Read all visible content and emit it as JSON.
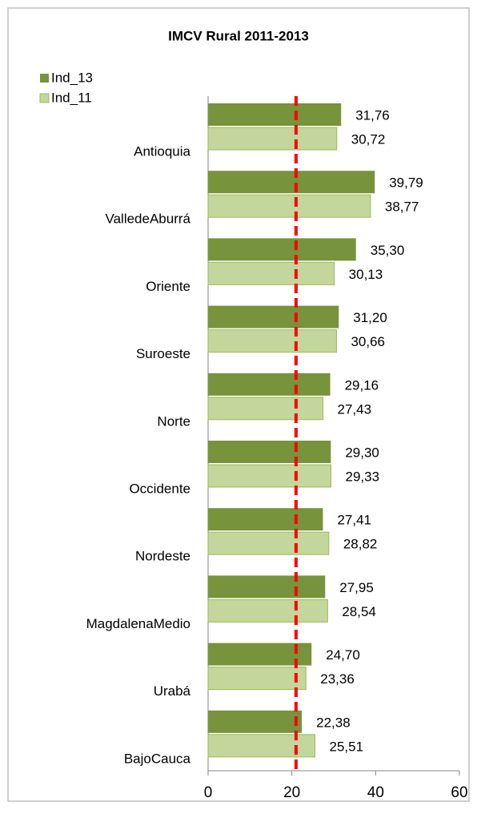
{
  "chart_data": {
    "type": "hbar",
    "title": "IMCV Rural 2011-2013",
    "categories": [
      "Antioquia",
      "ValledeAburrá",
      "Oriente",
      "Suroeste",
      "Norte",
      "Occidente",
      "Nordeste",
      "MagdalenaMedio",
      "Urabá",
      "BajoCauca"
    ],
    "series": [
      {
        "name": "Ind_13",
        "color": "#77933c",
        "values": [
          31.76,
          39.79,
          35.3,
          31.2,
          29.16,
          29.3,
          27.41,
          27.95,
          24.7,
          22.38
        ],
        "value_labels": [
          "31,76",
          "39,79",
          "35,30",
          "31,20",
          "29,16",
          "29,30",
          "27,41",
          "27,95",
          "24,70",
          "22,38"
        ]
      },
      {
        "name": "Ind_11",
        "color": "#c3d69b",
        "values": [
          30.72,
          38.77,
          30.13,
          30.66,
          27.43,
          29.33,
          28.82,
          28.54,
          23.36,
          25.51
        ],
        "value_labels": [
          "30,72",
          "38,77",
          "30,13",
          "30,66",
          "27,43",
          "29,33",
          "28,82",
          "28,54",
          "23,36",
          "25,51"
        ]
      }
    ],
    "xlim": [
      0,
      60
    ],
    "xticks": [
      0,
      20,
      40,
      60
    ],
    "reference_line": {
      "value": 21,
      "color": "#ff0000"
    },
    "legend": "top-left"
  }
}
